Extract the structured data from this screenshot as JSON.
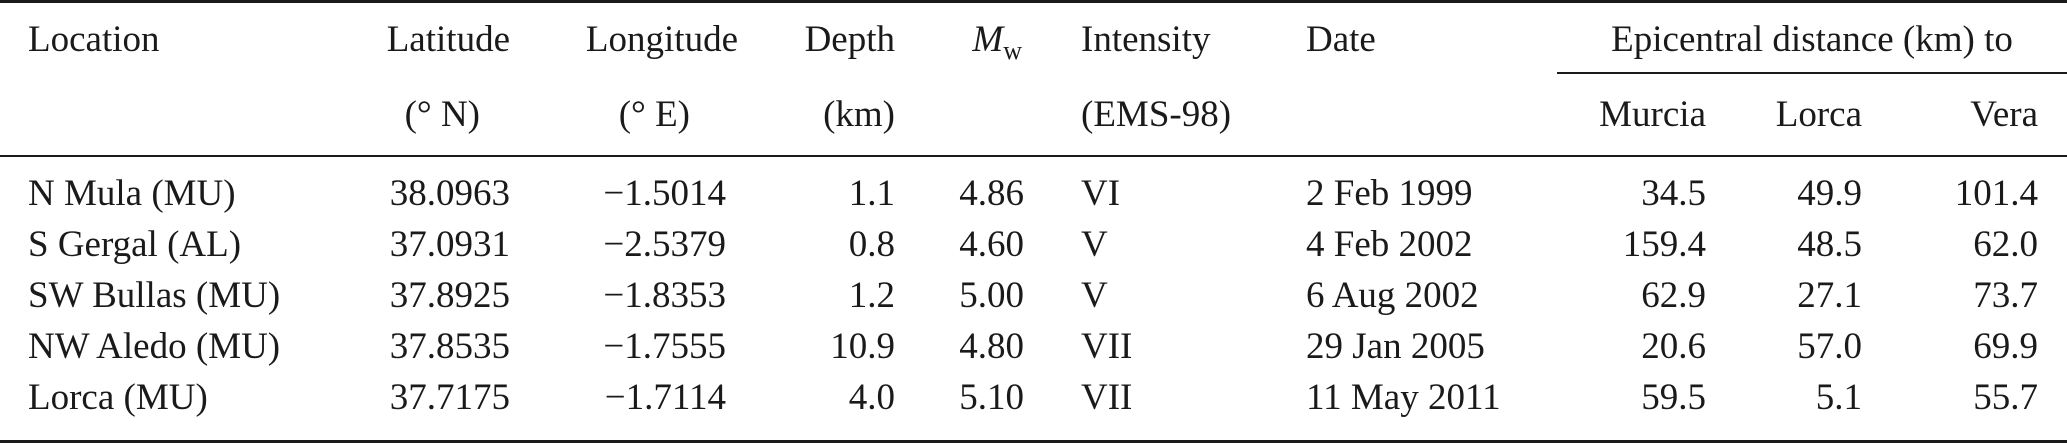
{
  "table": {
    "headers": {
      "location": "Location",
      "latitude": "Latitude",
      "latitude_unit": "(° N)",
      "longitude": "Longitude",
      "longitude_unit": "(° E)",
      "depth": "Depth",
      "depth_unit": "(km)",
      "mw_symbol": "M",
      "mw_subscript": "w",
      "intensity": "Intensity",
      "intensity_unit": "(EMS-98)",
      "date": "Date",
      "epicentral_group": "Epicentral distance (km) to",
      "murcia": "Murcia",
      "lorca": "Lorca",
      "vera": "Vera"
    },
    "rows": [
      {
        "location": "N Mula (MU)",
        "latitude": "38.0963",
        "longitude": "−1.5014",
        "depth": "1.1",
        "mw": "4.86",
        "intensity": "VI",
        "date": "2 Feb 1999",
        "murcia": "34.5",
        "lorca": "49.9",
        "vera": "101.4"
      },
      {
        "location": "S Gergal (AL)",
        "latitude": "37.0931",
        "longitude": "−2.5379",
        "depth": "0.8",
        "mw": "4.60",
        "intensity": "V",
        "date": "4 Feb 2002",
        "murcia": "159.4",
        "lorca": "48.5",
        "vera": "62.0"
      },
      {
        "location": "SW Bullas (MU)",
        "latitude": "37.8925",
        "longitude": "−1.8353",
        "depth": "1.2",
        "mw": "5.00",
        "intensity": "V",
        "date": "6 Aug 2002",
        "murcia": "62.9",
        "lorca": "27.1",
        "vera": "73.7"
      },
      {
        "location": "NW Aledo (MU)",
        "latitude": "37.8535",
        "longitude": "−1.7555",
        "depth": "10.9",
        "mw": "4.80",
        "intensity": "VII",
        "date": "29 Jan 2005",
        "murcia": "20.6",
        "lorca": "57.0",
        "vera": "69.9"
      },
      {
        "location": "Lorca (MU)",
        "latitude": "37.7175",
        "longitude": "−1.7114",
        "depth": "4.0",
        "mw": "5.10",
        "intensity": "VII",
        "date": "11 May 2011",
        "murcia": "59.5",
        "lorca": "5.1",
        "vera": "55.7"
      }
    ]
  }
}
